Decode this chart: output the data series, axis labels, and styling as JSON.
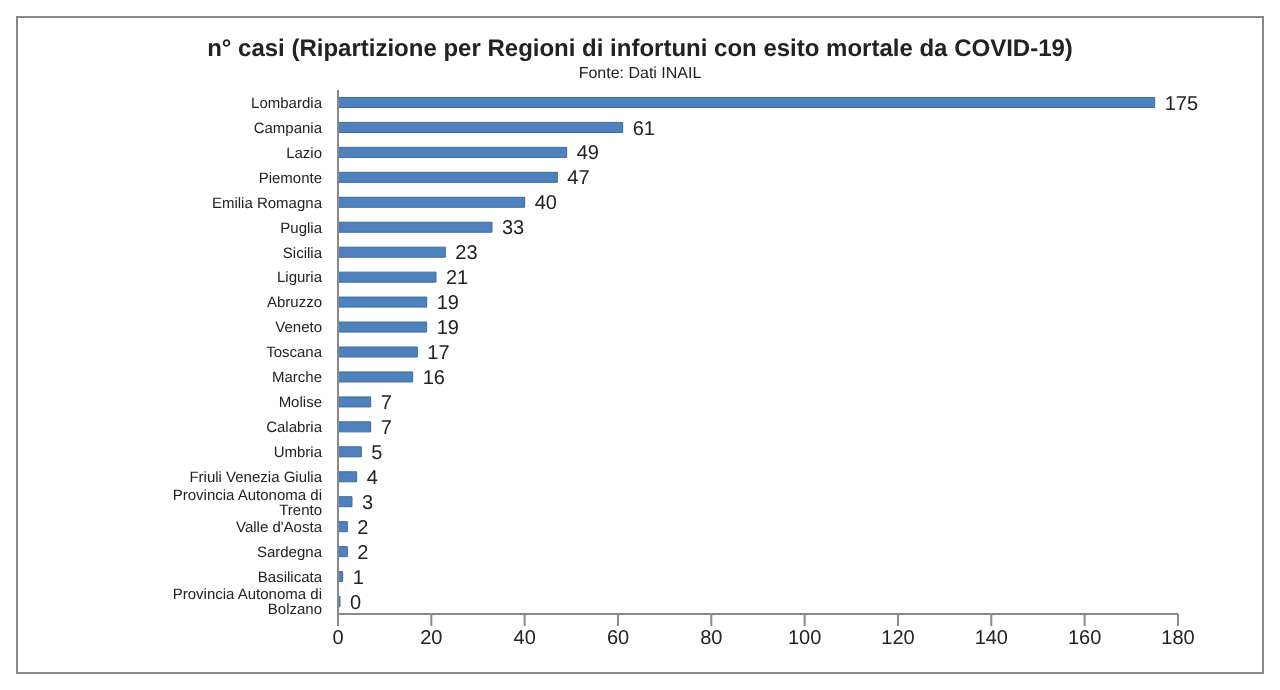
{
  "chart_data": {
    "type": "bar",
    "orientation": "horizontal",
    "title": "n° casi (Ripartizione per Regioni di infortuni con esito mortale da COVID-19)",
    "subtitle": "Fonte: Dati INAIL",
    "categories": [
      "Lombardia",
      "Campania",
      "Lazio",
      "Piemonte",
      "Emilia Romagna",
      "Puglia",
      "Sicilia",
      "Liguria",
      "Abruzzo",
      "Veneto",
      "Toscana",
      "Marche",
      "Molise",
      "Calabria",
      "Umbria",
      "Friuli Venezia Giulia",
      "Provincia Autonoma di Trento",
      "Valle d'Aosta",
      "Sardegna",
      "Basilicata",
      "Provincia Autonoma di Bolzano"
    ],
    "values": [
      175,
      61,
      49,
      47,
      40,
      33,
      23,
      21,
      19,
      19,
      17,
      16,
      7,
      7,
      5,
      4,
      3,
      2,
      2,
      1,
      0
    ],
    "color": "#4f81bd",
    "xlim": [
      0,
      180
    ],
    "xticks": [
      0,
      20,
      40,
      60,
      80,
      100,
      120,
      140,
      160,
      180
    ],
    "data_labels": true,
    "grid": false,
    "legend": false
  }
}
